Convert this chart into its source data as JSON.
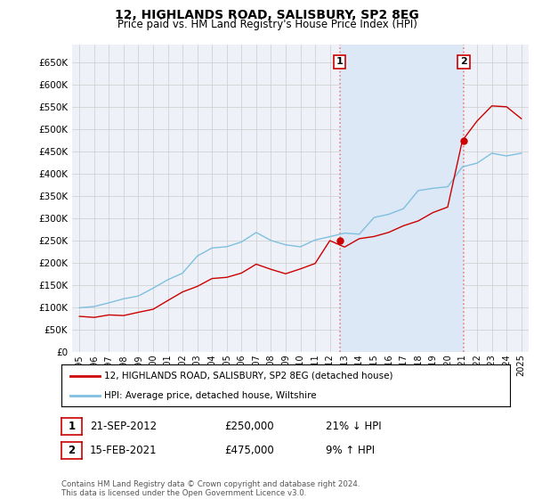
{
  "title": "12, HIGHLANDS ROAD, SALISBURY, SP2 8EG",
  "subtitle": "Price paid vs. HM Land Registry's House Price Index (HPI)",
  "ylabel_ticks": [
    "£0",
    "£50K",
    "£100K",
    "£150K",
    "£200K",
    "£250K",
    "£300K",
    "£350K",
    "£400K",
    "£450K",
    "£500K",
    "£550K",
    "£600K",
    "£650K"
  ],
  "ytick_vals": [
    0,
    50000,
    100000,
    150000,
    200000,
    250000,
    300000,
    350000,
    400000,
    450000,
    500000,
    550000,
    600000,
    650000
  ],
  "ylim": [
    0,
    690000
  ],
  "hpi_color": "#7fbfdf",
  "price_color": "#cc0000",
  "vline_color": "#e88080",
  "legend_label1": "12, HIGHLANDS ROAD, SALISBURY, SP2 8EG (detached house)",
  "legend_label2": "HPI: Average price, detached house, Wiltshire",
  "annotation1_date": "21-SEP-2012",
  "annotation1_price": "£250,000",
  "annotation1_hpi": "21% ↓ HPI",
  "annotation2_date": "15-FEB-2021",
  "annotation2_price": "£475,000",
  "annotation2_hpi": "9% ↑ HPI",
  "copyright": "Contains HM Land Registry data © Crown copyright and database right 2024.\nThis data is licensed under the Open Government Licence v3.0.",
  "xtick_labels": [
    "1995",
    "1996",
    "1997",
    "1998",
    "1999",
    "2000",
    "2001",
    "2002",
    "2003",
    "2004",
    "2005",
    "2006",
    "2007",
    "2008",
    "2009",
    "2010",
    "2011",
    "2012",
    "2013",
    "2014",
    "2015",
    "2016",
    "2017",
    "2018",
    "2019",
    "2020",
    "2021",
    "2022",
    "2023",
    "2024",
    "2025"
  ],
  "background_color": "#ffffff",
  "grid_color": "#cccccc",
  "plot_bg": "#eef2f8",
  "highlight_bg": "#dce8f5"
}
